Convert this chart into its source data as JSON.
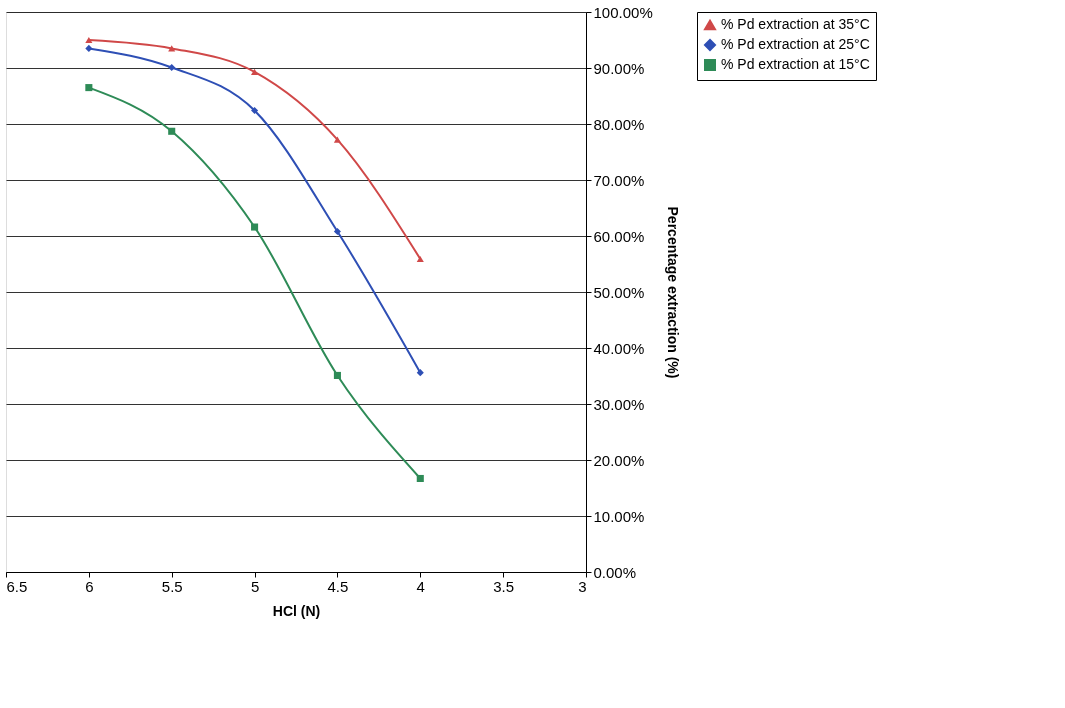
{
  "chart_data": {
    "type": "line",
    "xlabel": "HCl (N)",
    "ylabel": "Percentage extraction (%)",
    "x": [
      6,
      5.5,
      5,
      4.5,
      4
    ],
    "series": [
      {
        "name": "% Pd extraction at 35°C",
        "color": "#d04848",
        "marker": "triangle",
        "values": [
          95.0,
          93.5,
          89.3,
          77.2,
          55.9
        ]
      },
      {
        "name": "% Pd extraction at 25°C",
        "color": "#2e4fb5",
        "marker": "diamond",
        "values": [
          93.5,
          90.1,
          82.4,
          60.8,
          35.6
        ]
      },
      {
        "name": "% Pd extraction at 15°C",
        "color": "#2e8b57",
        "marker": "square",
        "values": [
          86.5,
          78.7,
          61.6,
          35.1,
          16.7
        ]
      }
    ],
    "xlim": [
      6.5,
      3
    ],
    "xticks": [
      6.5,
      6,
      5.5,
      5,
      4.5,
      4,
      3.5,
      3
    ],
    "ylim": [
      0,
      100
    ],
    "yticks": [
      {
        "value": 0,
        "label": "0.00%"
      },
      {
        "value": 10,
        "label": "10.00%"
      },
      {
        "value": 20,
        "label": "20.00%"
      },
      {
        "value": 30,
        "label": "30.00%"
      },
      {
        "value": 40,
        "label": "40.00%"
      },
      {
        "value": 50,
        "label": "50.00%"
      },
      {
        "value": 60,
        "label": "60.00%"
      },
      {
        "value": 70,
        "label": "70.00%"
      },
      {
        "value": 80,
        "label": "80.00%"
      },
      {
        "value": 90,
        "label": "90.00%"
      },
      {
        "value": 100,
        "label": "100.00%"
      }
    ],
    "grid": "y",
    "legend": "right",
    "line_style": "solid"
  }
}
